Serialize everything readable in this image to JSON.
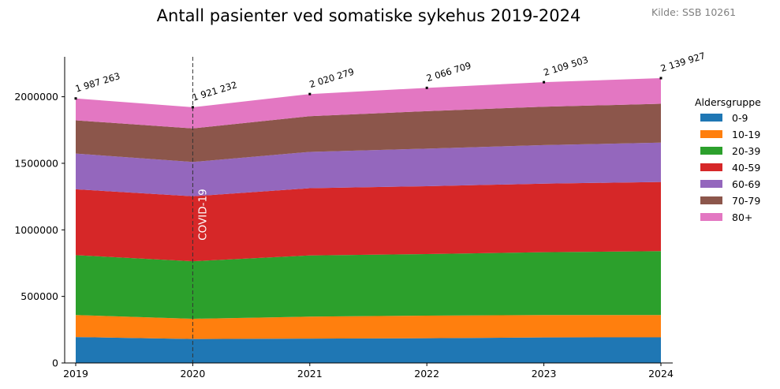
{
  "title": "Antall pasienter ved somatiske sykehus 2019-2024",
  "source": "Kilde: SSB 10261",
  "chart_data": {
    "type": "area",
    "stacked": true,
    "title": "Antall pasienter ved somatiske sykehus 2019-2024",
    "xlabel": "",
    "ylabel": "",
    "x": [
      2019,
      2020,
      2021,
      2022,
      2023,
      2024
    ],
    "x_tick_labels": [
      "2019",
      "2020",
      "2021",
      "2022",
      "2023",
      "2024"
    ],
    "ylim": [
      0,
      2300000
    ],
    "y_ticks": [
      0,
      500000,
      1000000,
      1500000,
      2000000
    ],
    "y_tick_labels": [
      "0",
      "500000",
      "1000000",
      "1500000",
      "2000000"
    ],
    "legend_title": "Aldersgruppe",
    "legend_position": "right",
    "grid": false,
    "series": [
      {
        "name": "0-9",
        "color": "#1f77b4",
        "values": [
          195000,
          180000,
          183000,
          186000,
          192000,
          193000
        ]
      },
      {
        "name": "10-19",
        "color": "#ff7f0e",
        "values": [
          165000,
          152000,
          165000,
          170000,
          168000,
          167000
        ]
      },
      {
        "name": "20-39",
        "color": "#2ca02c",
        "values": [
          450000,
          432000,
          460000,
          462000,
          472000,
          480000
        ]
      },
      {
        "name": "40-59",
        "color": "#d62728",
        "values": [
          495000,
          488000,
          505000,
          510000,
          515000,
          520000
        ]
      },
      {
        "name": "60-69",
        "color": "#9467bd",
        "values": [
          268000,
          258000,
          273000,
          282000,
          290000,
          295000
        ]
      },
      {
        "name": "70-79",
        "color": "#8c564b",
        "values": [
          250000,
          252000,
          268000,
          282000,
          288000,
          292000
        ]
      },
      {
        "name": "80+",
        "color": "#e377c2",
        "values": [
          164263,
          159232,
          166279,
          174709,
          184503,
          192927
        ]
      }
    ],
    "totals": [
      1987263,
      1921232,
      2020279,
      2066709,
      2109503,
      2139927
    ],
    "total_labels": [
      "1 987 263",
      "1 921 232",
      "2 020 279",
      "2 066 709",
      "2 109 503",
      "2 139 927"
    ],
    "annotations": [
      {
        "x": 2020,
        "text": "COVID-19",
        "style": "dashed vertical line"
      }
    ]
  }
}
